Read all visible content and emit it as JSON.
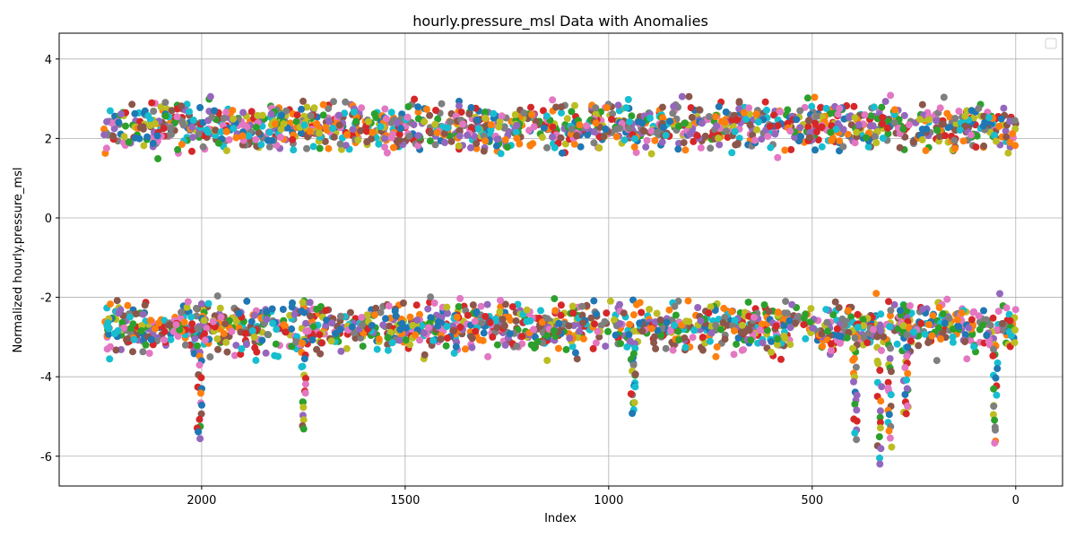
{
  "chart_data": {
    "type": "scatter",
    "title": "hourly.pressure_msl Data with Anomalies",
    "xlabel": "Index",
    "ylabel": "Normalized hourly.pressure_msl",
    "xlim": [
      2350,
      -115
    ],
    "ylim": [
      -6.75,
      4.65
    ],
    "x_inverted": true,
    "grid": true,
    "legend": "top-right",
    "legend_entries": [],
    "x_ticks": [
      {
        "value": 2000,
        "label": "2000"
      },
      {
        "value": 1500,
        "label": "1500"
      },
      {
        "value": 1000,
        "label": "1000"
      },
      {
        "value": 500,
        "label": "500"
      },
      {
        "value": 0,
        "label": "0"
      }
    ],
    "y_ticks": [
      {
        "value": 4,
        "label": "4"
      },
      {
        "value": 2,
        "label": "2"
      },
      {
        "value": 0,
        "label": "0"
      },
      {
        "value": -2,
        "label": "-2"
      },
      {
        "value": -4,
        "label": "-4"
      },
      {
        "value": -6,
        "label": "-6"
      }
    ],
    "palette": [
      "#1f77b4",
      "#ff7f0e",
      "#2ca02c",
      "#d62728",
      "#9467bd",
      "#8c564b",
      "#e377c2",
      "#7f7f7f",
      "#bcbd22",
      "#17becf"
    ],
    "upper_band": {
      "x_range": [
        0,
        2240
      ],
      "y_min": 1.4,
      "y_max": 4.2,
      "center": 2.3
    },
    "lower_band": {
      "x_range": [
        0,
        2240
      ],
      "y_min": -6.2,
      "y_max": -1.1,
      "center": -2.6
    },
    "deep_dips": [
      {
        "x": 2005,
        "y": -5.6
      },
      {
        "x": 1750,
        "y": -5.3
      },
      {
        "x": 940,
        "y": -4.9
      },
      {
        "x": 395,
        "y": -5.6
      },
      {
        "x": 335,
        "y": -6.2
      },
      {
        "x": 310,
        "y": -5.7
      },
      {
        "x": 270,
        "y": -5.0
      },
      {
        "x": 50,
        "y": -5.7
      }
    ]
  }
}
